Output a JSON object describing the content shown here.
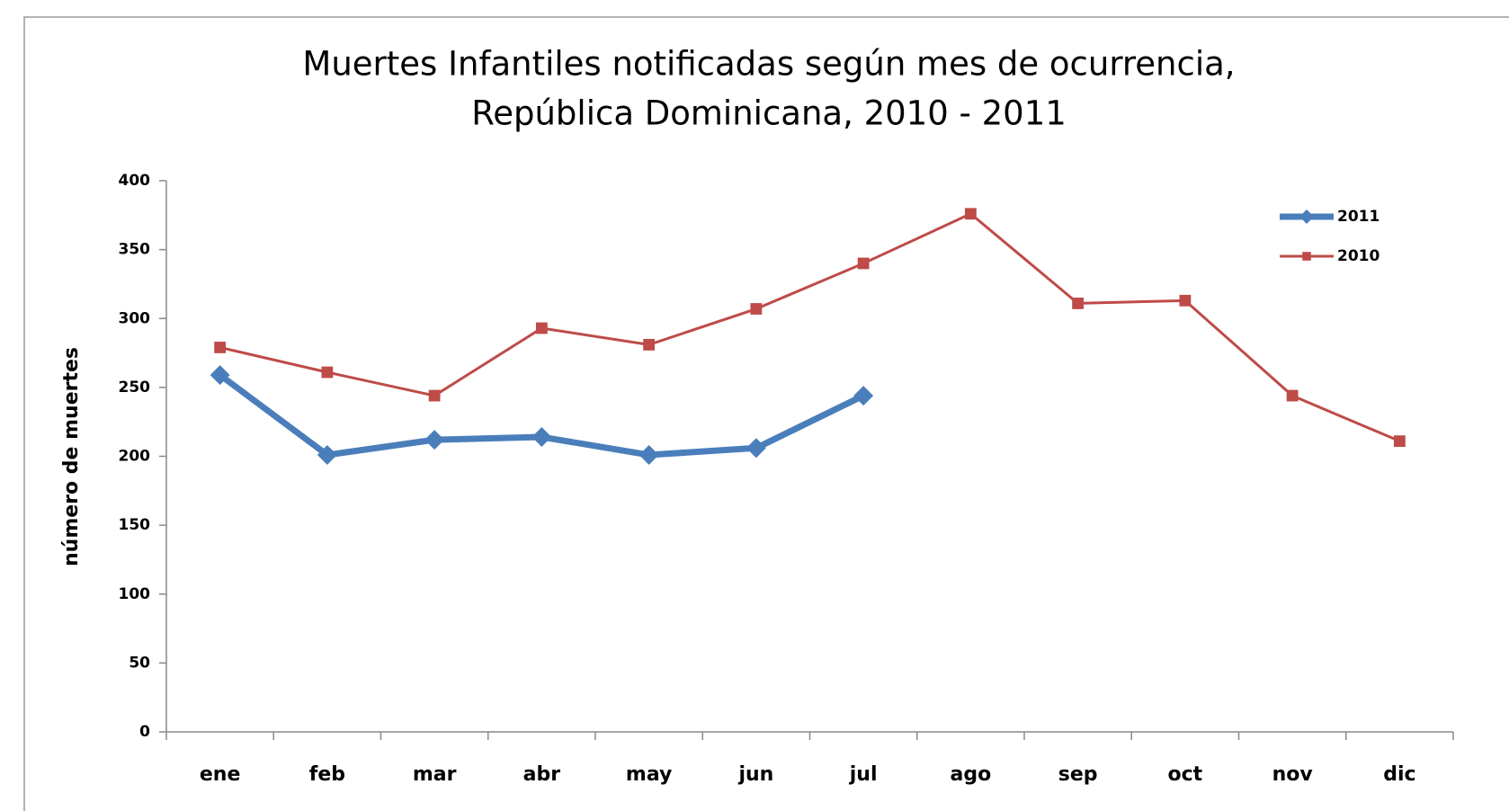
{
  "chart_data": {
    "type": "line",
    "title": [
      "Muertes Infantiles notificadas según mes de ocurrencia,",
      "República Dominicana, 2010 - 2011"
    ],
    "y_label": "número de muertes",
    "categories": [
      "ene",
      "feb",
      "mar",
      "abr",
      "may",
      "jun",
      "jul",
      "ago",
      "sep",
      "oct",
      "nov",
      "dic"
    ],
    "series": [
      {
        "name": "2011",
        "color": "#4a7ebb",
        "marker": "diamond",
        "values": [
          259,
          201,
          212,
          214,
          201,
          206,
          244,
          null,
          null,
          null,
          null,
          null
        ]
      },
      {
        "name": "2010",
        "color": "#be4b48",
        "marker": "square",
        "values": [
          279,
          261,
          244,
          293,
          281,
          307,
          340,
          376,
          311,
          313,
          244,
          211
        ]
      }
    ],
    "ylim": [
      0,
      400
    ],
    "yticks": [
      0,
      50,
      100,
      150,
      200,
      250,
      300,
      350,
      400
    ],
    "grid": false,
    "legend": "top-right"
  }
}
